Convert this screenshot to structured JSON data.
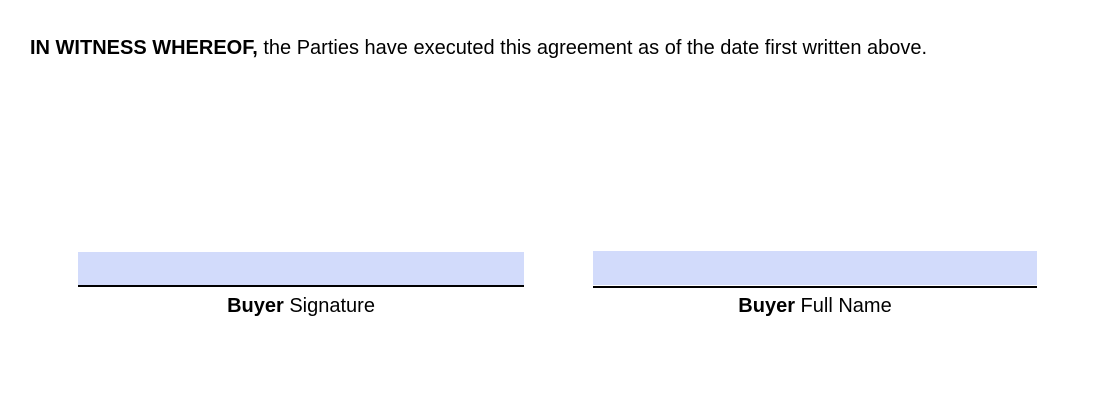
{
  "witness": {
    "lead": "IN WITNESS WHEREOF,",
    "text": " the Parties have executed this agreement as of the date first written above."
  },
  "signature_fields": [
    {
      "value": "",
      "role": "Buyer",
      "label": " Signature"
    },
    {
      "value": "",
      "role": "Buyer",
      "label": " Full Name"
    }
  ],
  "colors": {
    "field_fill": "#d2dbfb",
    "line": "#000000"
  }
}
